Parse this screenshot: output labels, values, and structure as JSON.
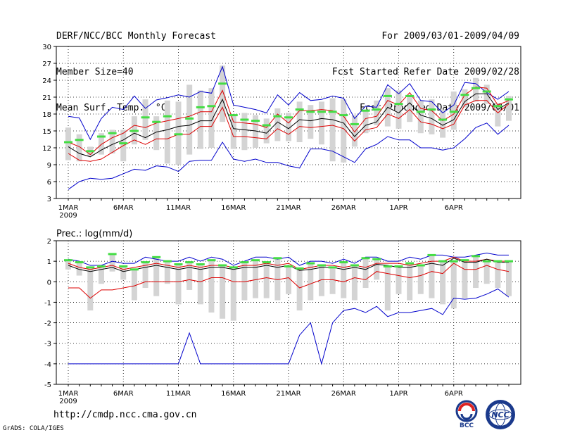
{
  "header": {
    "title": "DERF/NCC/BCC Monthly Forecast",
    "member_size": "Member Size=40",
    "variable": "Mean Surf. Temp.: °C",
    "period": "For 2009/03/01-2009/04/09",
    "started": "Fcst Started Refer Date 2009/02/28",
    "produced": "Fcst Produced Date 2009/03/01"
  },
  "footer": {
    "url": "http://cmdp.ncc.cma.gov.cn",
    "credit": "GrADS: COLA/IGES",
    "logo_bcc": "BCC",
    "logo_ncc": "NCC"
  },
  "chart_data": [
    {
      "type": "line",
      "title": "Mean Surf. Temp.: °C",
      "x_days": 40,
      "x_ticks": [
        "1MAR",
        "6MAR",
        "11MAR",
        "16MAR",
        "21MAR",
        "26MAR",
        "1APR",
        "6APR"
      ],
      "x_year": "2009",
      "ylim": [
        3,
        30
      ],
      "yticks": [
        3,
        6,
        9,
        12,
        15,
        18,
        21,
        24,
        27,
        30
      ],
      "grid": true,
      "series": [
        {
          "name": "max",
          "color": "#0000cc",
          "values": [
            17.6,
            17.3,
            13.5,
            17.2,
            19.2,
            18.8,
            21.2,
            19.0,
            20.5,
            20.9,
            21.4,
            21.0,
            22.0,
            21.7,
            26.4,
            19.6,
            19.2,
            18.8,
            18.2,
            21.4,
            19.6,
            21.8,
            20.4,
            20.6,
            21.2,
            20.8,
            17.2,
            19.4,
            19.2,
            23.2,
            21.6,
            23.4,
            20.4,
            20.2,
            18.2,
            19.6,
            23.6,
            23.4,
            21.8,
            20.6,
            22.0
          ]
        },
        {
          "name": "upper",
          "color": "#dd0000",
          "values": [
            13.0,
            12.2,
            10.8,
            12.6,
            13.8,
            14.6,
            16.0,
            15.6,
            16.4,
            16.8,
            17.2,
            17.6,
            18.4,
            18.4,
            22.2,
            16.6,
            16.4,
            16.2,
            15.6,
            18.0,
            16.4,
            18.6,
            18.6,
            18.8,
            18.6,
            17.6,
            14.8,
            17.2,
            17.6,
            20.4,
            19.6,
            21.8,
            19.0,
            18.6,
            16.8,
            18.0,
            21.4,
            22.8,
            22.6,
            19.6,
            20.4
          ]
        },
        {
          "name": "mean",
          "color": "#000000",
          "values": [
            12.2,
            11.0,
            10.4,
            11.6,
            12.6,
            13.4,
            14.6,
            13.8,
            14.8,
            15.2,
            15.8,
            16.0,
            16.8,
            16.8,
            20.6,
            15.4,
            15.2,
            15.0,
            14.6,
            16.6,
            15.4,
            17.0,
            16.8,
            17.2,
            17.0,
            16.4,
            14.0,
            16.0,
            16.6,
            19.2,
            18.2,
            20.0,
            17.8,
            17.2,
            16.0,
            17.0,
            20.2,
            21.6,
            21.6,
            18.8,
            20.0
          ]
        },
        {
          "name": "lower",
          "color": "#dd0000",
          "values": [
            11.0,
            9.8,
            9.6,
            10.0,
            11.2,
            12.4,
            13.4,
            12.6,
            13.6,
            13.6,
            14.4,
            14.4,
            15.8,
            15.8,
            19.2,
            14.0,
            14.0,
            13.8,
            13.6,
            15.4,
            14.4,
            15.8,
            15.6,
            15.8,
            16.0,
            15.4,
            13.2,
            15.2,
            15.6,
            18.0,
            17.2,
            18.8,
            16.6,
            16.2,
            15.4,
            16.2,
            19.6,
            20.4,
            20.4,
            18.2,
            19.8
          ]
        },
        {
          "name": "min",
          "color": "#0000cc",
          "values": [
            4.6,
            6.0,
            6.6,
            6.4,
            6.6,
            7.4,
            8.2,
            8.0,
            8.8,
            8.6,
            7.8,
            9.6,
            9.8,
            9.8,
            13.0,
            10.0,
            9.6,
            10.0,
            9.4,
            9.4,
            8.8,
            8.4,
            11.8,
            11.8,
            11.4,
            10.4,
            9.4,
            11.8,
            12.6,
            14.0,
            13.4,
            13.4,
            12.0,
            12.0,
            11.6,
            12.0,
            13.6,
            15.6,
            16.4,
            14.4,
            16.0
          ]
        }
      ],
      "members": {
        "green_values": [
          13.0,
          13.4,
          11.4,
          14.0,
          14.6,
          12.8,
          15.0,
          17.4,
          16.6,
          17.6,
          14.4,
          17.2,
          19.2,
          19.4,
          23.4,
          17.8,
          17.0,
          16.8,
          16.0,
          17.6,
          17.4,
          18.8,
          18.4,
          18.4,
          18.4,
          17.8,
          16.2,
          18.6,
          18.8,
          21.2,
          19.8,
          21.2,
          18.4,
          18.8,
          17.0,
          18.4,
          21.4,
          22.6,
          22.0,
          19.4,
          20.6
        ],
        "box_low": [
          9.8,
          9.6,
          10.6,
          10.8,
          11.0,
          9.6,
          12.6,
          13.4,
          11.6,
          9.2,
          9.0,
          10.8,
          11.8,
          12.0,
          16.6,
          11.8,
          11.6,
          12.0,
          12.8,
          13.2,
          13.2,
          13.0,
          13.6,
          12.6,
          9.6,
          9.4,
          12.2,
          14.6,
          16.0,
          15.8,
          15.4,
          16.6,
          14.6,
          14.4,
          13.8,
          15.2,
          19.2,
          20.2,
          19.8,
          15.8,
          16.8
        ],
        "box_high": [
          15.6,
          14.4,
          12.2,
          14.6,
          15.2,
          15.2,
          17.6,
          20.6,
          17.6,
          20.4,
          20.2,
          23.2,
          22.2,
          22.6,
          26.6,
          17.8,
          18.2,
          17.8,
          17.2,
          19.0,
          18.2,
          20.2,
          19.6,
          20.2,
          20.8,
          20.6,
          17.8,
          18.6,
          20.4,
          22.6,
          22.2,
          21.4,
          20.4,
          20.6,
          18.8,
          22.0,
          22.4,
          24.4,
          23.2,
          19.8,
          21.2
        ]
      }
    },
    {
      "type": "line",
      "title": "Prec.: log(mm/d)",
      "x_days": 40,
      "x_ticks": [
        "1MAR",
        "6MAR",
        "11MAR",
        "16MAR",
        "21MAR",
        "26MAR",
        "1APR",
        "6APR"
      ],
      "x_year": "2009",
      "ylim": [
        -5,
        2
      ],
      "yticks": [
        -5,
        -4,
        -3,
        -2,
        -1,
        0,
        1,
        2
      ],
      "grid": true,
      "series": [
        {
          "name": "max",
          "color": "#0000cc",
          "values": [
            1.1,
            1.0,
            0.8,
            0.8,
            1.0,
            0.9,
            0.9,
            1.2,
            1.1,
            1.0,
            1.0,
            1.2,
            1.0,
            1.2,
            1.1,
            0.8,
            1.0,
            1.2,
            1.2,
            1.1,
            1.2,
            0.8,
            1.0,
            1.0,
            0.9,
            1.1,
            0.9,
            1.2,
            1.2,
            1.0,
            1.0,
            1.2,
            1.1,
            1.3,
            1.3,
            1.2,
            1.2,
            1.3,
            1.4,
            1.3,
            1.3
          ]
        },
        {
          "name": "upper",
          "color": "#dd0000",
          "values": [
            0.9,
            0.7,
            0.6,
            0.7,
            0.8,
            0.6,
            0.7,
            0.8,
            0.9,
            0.8,
            0.7,
            0.8,
            0.7,
            0.8,
            0.8,
            0.7,
            0.8,
            0.8,
            0.9,
            0.8,
            0.9,
            0.6,
            0.7,
            0.8,
            0.8,
            0.7,
            0.8,
            0.7,
            0.9,
            0.9,
            0.9,
            0.8,
            0.9,
            1.0,
            1.0,
            1.2,
            1.0,
            1.0,
            1.1,
            1.0,
            1.0
          ]
        },
        {
          "name": "mean",
          "color": "#000000",
          "values": [
            0.8,
            0.6,
            0.5,
            0.6,
            0.7,
            0.5,
            0.6,
            0.7,
            0.8,
            0.7,
            0.6,
            0.7,
            0.6,
            0.7,
            0.7,
            0.6,
            0.7,
            0.7,
            0.8,
            0.7,
            0.8,
            0.55,
            0.6,
            0.7,
            0.7,
            0.6,
            0.7,
            0.6,
            0.85,
            0.8,
            0.7,
            0.7,
            0.8,
            0.9,
            0.8,
            1.15,
            0.95,
            0.95,
            1.1,
            0.95,
            0.95
          ]
        },
        {
          "name": "lower",
          "color": "#dd0000",
          "values": [
            -0.3,
            -0.3,
            -0.8,
            -0.4,
            -0.4,
            -0.3,
            -0.2,
            0.0,
            0.0,
            0.0,
            0.0,
            0.1,
            0.0,
            0.2,
            0.2,
            0.0,
            0.0,
            0.1,
            0.2,
            0.1,
            0.2,
            -0.3,
            -0.1,
            0.1,
            0.1,
            0.0,
            0.2,
            0.1,
            0.5,
            0.4,
            0.3,
            0.2,
            0.3,
            0.5,
            0.4,
            0.9,
            0.6,
            0.6,
            0.8,
            0.6,
            0.5
          ]
        },
        {
          "name": "min",
          "color": "#0000cc",
          "values": [
            -4.0,
            -4.0,
            -4.0,
            -4.0,
            -4.0,
            -4.0,
            -4.0,
            -4.0,
            -4.0,
            -4.0,
            -4.0,
            -2.5,
            -4.0,
            -4.0,
            -4.0,
            -4.0,
            -4.0,
            -4.0,
            -4.0,
            -4.0,
            -4.0,
            -2.6,
            -2.0,
            -4.0,
            -2.0,
            -1.4,
            -1.3,
            -1.5,
            -1.2,
            -1.7,
            -1.5,
            -1.5,
            -1.4,
            -1.3,
            -1.6,
            -0.8,
            -0.85,
            -0.8,
            -0.6,
            -0.35,
            -0.75
          ]
        }
      ],
      "members": {
        "green_values": [
          1.05,
          0.95,
          0.7,
          0.75,
          1.35,
          0.75,
          0.6,
          0.95,
          1.2,
          1.0,
          0.85,
          0.95,
          0.85,
          1.05,
          0.8,
          0.7,
          0.95,
          1.05,
          0.95,
          1.15,
          0.75,
          0.65,
          0.9,
          0.8,
          0.7,
          0.95,
          0.8,
          1.15,
          1.1,
          0.75,
          0.75,
          0.9,
          0.8,
          1.3,
          1.0,
          1.0,
          1.05,
          1.25,
          1.0,
          1.0,
          1.0
        ],
        "box_low": [
          0.6,
          0.3,
          -1.4,
          -0.1,
          0.5,
          0.1,
          -0.9,
          -0.3,
          -0.7,
          -0.1,
          -1.1,
          -0.4,
          -1.1,
          -1.5,
          -1.8,
          -1.9,
          -0.9,
          -0.8,
          -0.8,
          -0.9,
          -0.6,
          -1.4,
          -0.9,
          -0.7,
          -0.6,
          -0.8,
          -0.9,
          -0.3,
          0.1,
          -1.4,
          -0.6,
          -0.9,
          -0.6,
          -0.8,
          -1.1,
          -1.3,
          -0.8,
          -0.3,
          -0.1,
          -0.3,
          -0.7
        ]
      }
    }
  ]
}
